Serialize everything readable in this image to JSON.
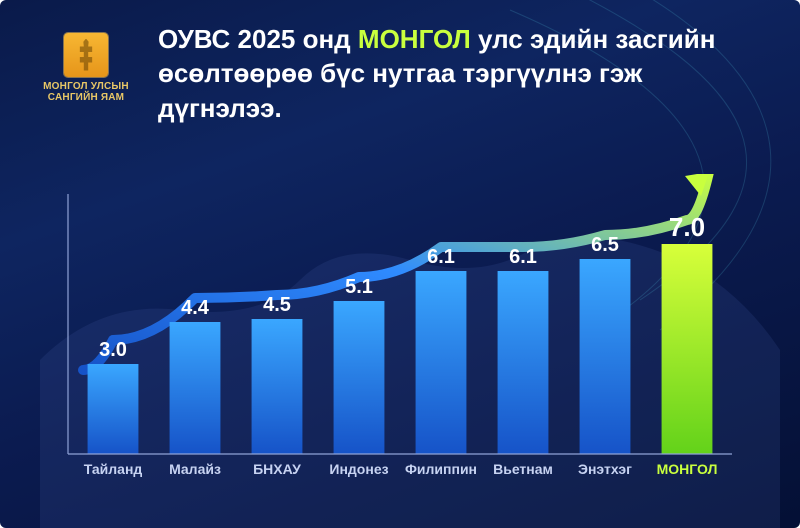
{
  "logo": {
    "line1": "МОНГОЛ УЛСЫН",
    "line2": "САНГИЙН ЯАМ"
  },
  "title": {
    "prefix": "ОУВС 2025 онд ",
    "highlight": "МОНГОЛ",
    "suffix": " улс эдийн засгийн өсөлтөөрөө бүс нутгаа тэргүүлнэ гэж дүгнэлээ."
  },
  "chart": {
    "type": "bar",
    "ylim": [
      0,
      8
    ],
    "bar_width": 0.62,
    "categories": [
      "Тайланд",
      "Малайз",
      "БНХАУ",
      "Индонез",
      "Филиппин",
      "Вьетнам",
      "Энэтхэг",
      "МОНГОЛ"
    ],
    "values": [
      3.0,
      4.4,
      4.5,
      5.1,
      6.1,
      6.1,
      6.5,
      7.0
    ],
    "value_labels": [
      "3.0",
      "4.4",
      "4.5",
      "5.1",
      "6.1",
      "6.1",
      "6.5",
      "7.0"
    ],
    "highlight_index": 7,
    "bar_gradient_default": [
      "#3aa7ff",
      "#1653c8"
    ],
    "bar_gradient_highlight": [
      "#d8ff3a",
      "#63d21a"
    ],
    "axis_color": "#8fa2d6",
    "label_color": "#c7d3f2",
    "value_label_color": "#ffffff",
    "highlight_label_color": "#c9ff3e",
    "value_fontsize": 20,
    "value_fontsize_highlight": 26,
    "category_fontsize": 14,
    "trend_gradient": [
      "#1653c8",
      "#2f8bff",
      "#c9ff3e"
    ],
    "trend_width": 10,
    "background_gradient": [
      "#0a1a4a",
      "#0e2560",
      "#0b1b50",
      "#041035"
    ]
  }
}
